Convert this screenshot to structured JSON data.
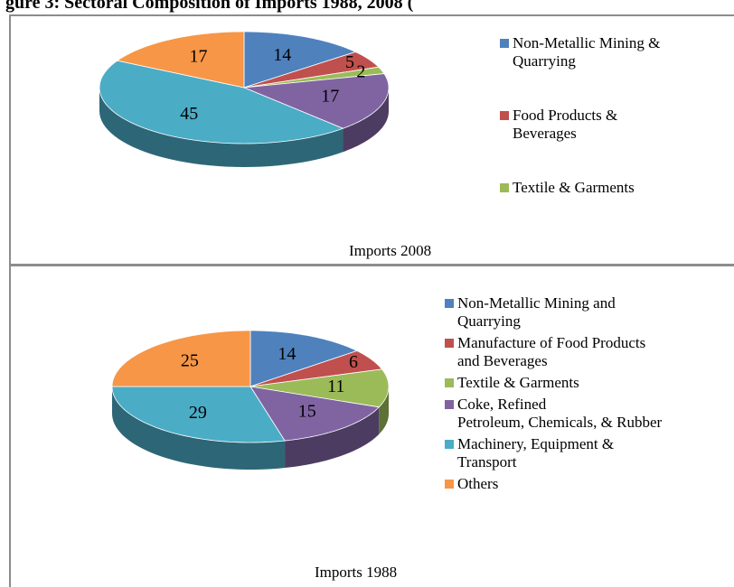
{
  "title": "gure 3: Sectoral Composition of Imports 1988, 2008 (",
  "chart_data": [
    {
      "type": "pie3d",
      "title": "Imports 2008",
      "categories": [
        "Non-Metallic Mining &\nQuarrying",
        "Food Products &\nBeverages",
        "Textile & Garments",
        null,
        null,
        null
      ],
      "values": [
        14,
        5,
        2,
        17,
        45,
        17
      ],
      "colors": [
        "#4f81bd",
        "#c0504d",
        "#9bbb59",
        "#8064a2",
        "#4bacc6",
        "#f79646"
      ]
    },
    {
      "type": "pie3d",
      "title": "Imports 1988",
      "categories": [
        "Non-Metallic Mining and\nQuarrying",
        "Manufacture of Food Products\nand Beverages",
        "Textile & Garments",
        "Coke, Refined\nPetroleum, Chemicals, & Rubber",
        "Machinery, Equipment &\nTransport",
        "Others"
      ],
      "values": [
        14,
        6,
        11,
        15,
        29,
        25
      ],
      "colors": [
        "#4f81bd",
        "#c0504d",
        "#9bbb59",
        "#8064a2",
        "#4bacc6",
        "#f79646"
      ]
    }
  ]
}
